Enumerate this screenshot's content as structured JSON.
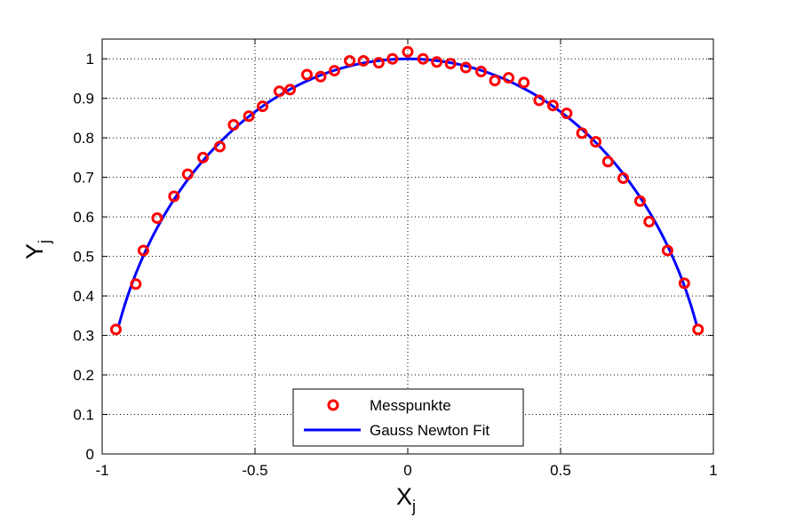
{
  "chart_data": {
    "type": "scatter",
    "title": "",
    "xlabel": "X",
    "xlabel_sub": "j",
    "ylabel": "Y",
    "ylabel_sub": "j",
    "xlim": [
      -1,
      1
    ],
    "ylim": [
      0,
      1.05
    ],
    "xticks": [
      -1,
      -0.5,
      0,
      0.5,
      1
    ],
    "xtick_labels": [
      "-1",
      "-0.5",
      "0",
      "0.5",
      "1"
    ],
    "yticks": [
      0,
      0.1,
      0.2,
      0.3,
      0.4,
      0.5,
      0.6,
      0.7,
      0.8,
      0.9,
      1
    ],
    "ytick_labels": [
      "0",
      "0.1",
      "0.2",
      "0.3",
      "0.4",
      "0.5",
      "0.6",
      "0.7",
      "0.8",
      "0.9",
      "1"
    ],
    "grid": true,
    "legend_position": "bottom-center",
    "series": [
      {
        "name": "Messpunkte",
        "style": "markers",
        "marker": "circle",
        "color": "#ff0000",
        "x": [
          -0.955,
          -0.89,
          -0.865,
          -0.82,
          -0.765,
          -0.72,
          -0.67,
          -0.615,
          -0.57,
          -0.52,
          -0.475,
          -0.42,
          -0.385,
          -0.33,
          -0.285,
          -0.24,
          -0.19,
          -0.145,
          -0.095,
          -0.05,
          0.0,
          0.05,
          0.095,
          0.14,
          0.19,
          0.24,
          0.285,
          0.33,
          0.38,
          0.43,
          0.475,
          0.52,
          0.57,
          0.615,
          0.655,
          0.705,
          0.76,
          0.79,
          0.85,
          0.905,
          0.95
        ],
        "y": [
          0.315,
          0.43,
          0.515,
          0.597,
          0.652,
          0.708,
          0.75,
          0.778,
          0.833,
          0.855,
          0.88,
          0.918,
          0.922,
          0.96,
          0.955,
          0.97,
          0.995,
          0.995,
          0.99,
          1.0,
          1.018,
          1.0,
          0.992,
          0.988,
          0.978,
          0.968,
          0.945,
          0.952,
          0.94,
          0.895,
          0.882,
          0.862,
          0.812,
          0.79,
          0.74,
          0.698,
          0.64,
          0.588,
          0.515,
          0.432,
          0.315
        ]
      },
      {
        "name": "Gauss Newton Fit",
        "style": "line",
        "color": "#0000ff",
        "model": "circle",
        "center": [
          0,
          0
        ],
        "radius": 1.0,
        "x_range": [
          -0.945,
          0.945
        ]
      }
    ]
  }
}
